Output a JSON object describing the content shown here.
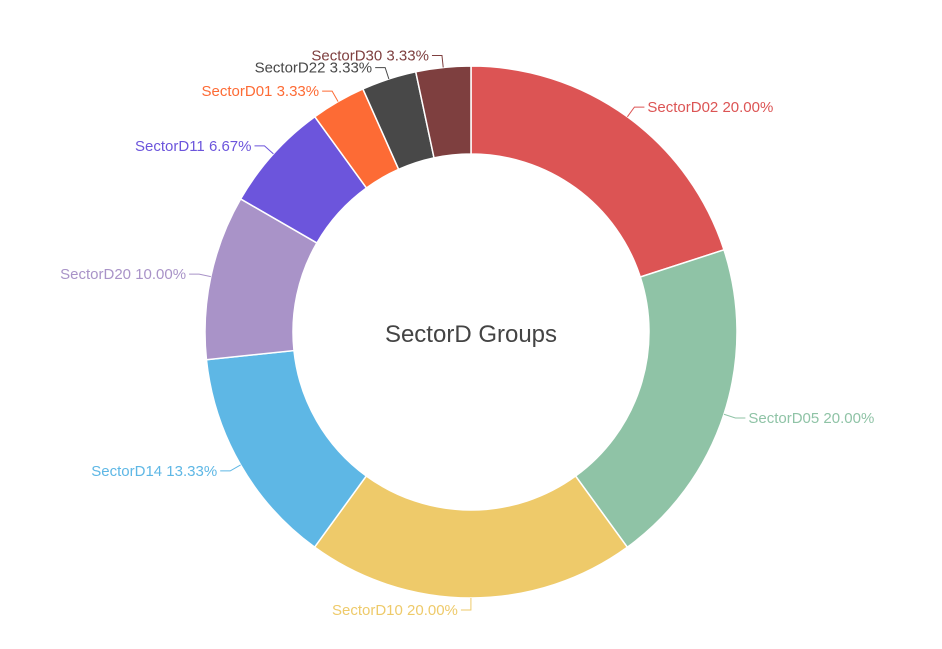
{
  "chart_data": {
    "type": "pie",
    "variant": "donut",
    "title": "SectorD Groups",
    "slices": [
      {
        "label": "SectorD02",
        "value": 20.0,
        "color": "#dc5454"
      },
      {
        "label": "SectorD05",
        "value": 20.0,
        "color": "#8fc3a6"
      },
      {
        "label": "SectorD10",
        "value": 20.0,
        "color": "#eeca6a"
      },
      {
        "label": "SectorD14",
        "value": 13.33,
        "color": "#5eb7e5"
      },
      {
        "label": "SectorD20",
        "value": 10.0,
        "color": "#a993c8"
      },
      {
        "label": "SectorD11",
        "value": 6.67,
        "color": "#6c55dc"
      },
      {
        "label": "SectorD01",
        "value": 3.33,
        "color": "#fd6b35"
      },
      {
        "label": "SectorD22",
        "value": 3.33,
        "color": "#484848"
      },
      {
        "label": "SectorD30",
        "value": 3.33,
        "color": "#7e3f3f"
      }
    ],
    "label_format": "{label} {value}%",
    "legend": "none"
  }
}
